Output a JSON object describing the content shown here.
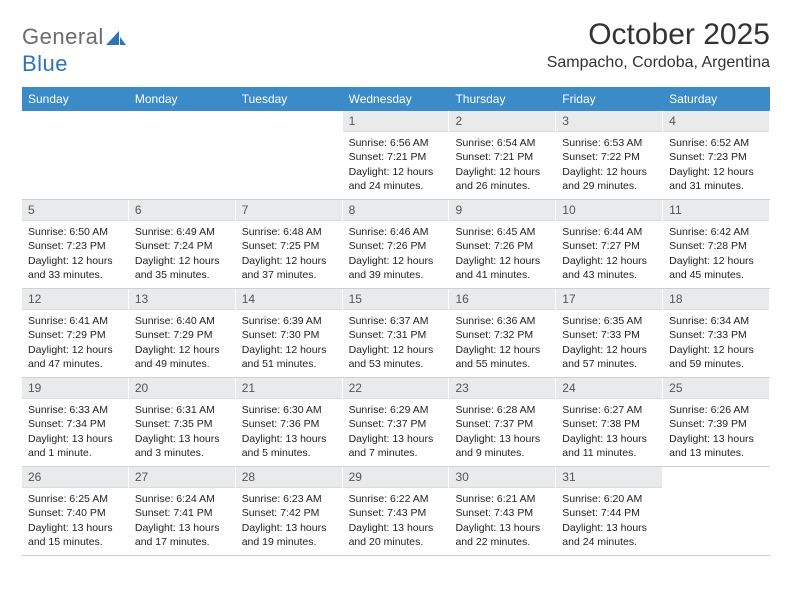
{
  "brand": {
    "name_a": "General",
    "name_b": "Blue"
  },
  "header": {
    "month_title": "October 2025",
    "location": "Sampacho, Cordoba, Argentina"
  },
  "colors": {
    "header_bar": "#3b8bc9",
    "daynum_bg": "#e9eaec",
    "text": "#333333",
    "logo_grey": "#6b6b6b",
    "logo_blue": "#2e75b6"
  },
  "days_of_week": [
    "Sunday",
    "Monday",
    "Tuesday",
    "Wednesday",
    "Thursday",
    "Friday",
    "Saturday"
  ],
  "weeks": [
    [
      null,
      null,
      null,
      {
        "n": "1",
        "sr": "6:56 AM",
        "ss": "7:21 PM",
        "dl": "12 hours and 24 minutes."
      },
      {
        "n": "2",
        "sr": "6:54 AM",
        "ss": "7:21 PM",
        "dl": "12 hours and 26 minutes."
      },
      {
        "n": "3",
        "sr": "6:53 AM",
        "ss": "7:22 PM",
        "dl": "12 hours and 29 minutes."
      },
      {
        "n": "4",
        "sr": "6:52 AM",
        "ss": "7:23 PM",
        "dl": "12 hours and 31 minutes."
      }
    ],
    [
      {
        "n": "5",
        "sr": "6:50 AM",
        "ss": "7:23 PM",
        "dl": "12 hours and 33 minutes."
      },
      {
        "n": "6",
        "sr": "6:49 AM",
        "ss": "7:24 PM",
        "dl": "12 hours and 35 minutes."
      },
      {
        "n": "7",
        "sr": "6:48 AM",
        "ss": "7:25 PM",
        "dl": "12 hours and 37 minutes."
      },
      {
        "n": "8",
        "sr": "6:46 AM",
        "ss": "7:26 PM",
        "dl": "12 hours and 39 minutes."
      },
      {
        "n": "9",
        "sr": "6:45 AM",
        "ss": "7:26 PM",
        "dl": "12 hours and 41 minutes."
      },
      {
        "n": "10",
        "sr": "6:44 AM",
        "ss": "7:27 PM",
        "dl": "12 hours and 43 minutes."
      },
      {
        "n": "11",
        "sr": "6:42 AM",
        "ss": "7:28 PM",
        "dl": "12 hours and 45 minutes."
      }
    ],
    [
      {
        "n": "12",
        "sr": "6:41 AM",
        "ss": "7:29 PM",
        "dl": "12 hours and 47 minutes."
      },
      {
        "n": "13",
        "sr": "6:40 AM",
        "ss": "7:29 PM",
        "dl": "12 hours and 49 minutes."
      },
      {
        "n": "14",
        "sr": "6:39 AM",
        "ss": "7:30 PM",
        "dl": "12 hours and 51 minutes."
      },
      {
        "n": "15",
        "sr": "6:37 AM",
        "ss": "7:31 PM",
        "dl": "12 hours and 53 minutes."
      },
      {
        "n": "16",
        "sr": "6:36 AM",
        "ss": "7:32 PM",
        "dl": "12 hours and 55 minutes."
      },
      {
        "n": "17",
        "sr": "6:35 AM",
        "ss": "7:33 PM",
        "dl": "12 hours and 57 minutes."
      },
      {
        "n": "18",
        "sr": "6:34 AM",
        "ss": "7:33 PM",
        "dl": "12 hours and 59 minutes."
      }
    ],
    [
      {
        "n": "19",
        "sr": "6:33 AM",
        "ss": "7:34 PM",
        "dl": "13 hours and 1 minute."
      },
      {
        "n": "20",
        "sr": "6:31 AM",
        "ss": "7:35 PM",
        "dl": "13 hours and 3 minutes."
      },
      {
        "n": "21",
        "sr": "6:30 AM",
        "ss": "7:36 PM",
        "dl": "13 hours and 5 minutes."
      },
      {
        "n": "22",
        "sr": "6:29 AM",
        "ss": "7:37 PM",
        "dl": "13 hours and 7 minutes."
      },
      {
        "n": "23",
        "sr": "6:28 AM",
        "ss": "7:37 PM",
        "dl": "13 hours and 9 minutes."
      },
      {
        "n": "24",
        "sr": "6:27 AM",
        "ss": "7:38 PM",
        "dl": "13 hours and 11 minutes."
      },
      {
        "n": "25",
        "sr": "6:26 AM",
        "ss": "7:39 PM",
        "dl": "13 hours and 13 minutes."
      }
    ],
    [
      {
        "n": "26",
        "sr": "6:25 AM",
        "ss": "7:40 PM",
        "dl": "13 hours and 15 minutes."
      },
      {
        "n": "27",
        "sr": "6:24 AM",
        "ss": "7:41 PM",
        "dl": "13 hours and 17 minutes."
      },
      {
        "n": "28",
        "sr": "6:23 AM",
        "ss": "7:42 PM",
        "dl": "13 hours and 19 minutes."
      },
      {
        "n": "29",
        "sr": "6:22 AM",
        "ss": "7:43 PM",
        "dl": "13 hours and 20 minutes."
      },
      {
        "n": "30",
        "sr": "6:21 AM",
        "ss": "7:43 PM",
        "dl": "13 hours and 22 minutes."
      },
      {
        "n": "31",
        "sr": "6:20 AM",
        "ss": "7:44 PM",
        "dl": "13 hours and 24 minutes."
      },
      null
    ]
  ],
  "labels": {
    "sunrise": "Sunrise:",
    "sunset": "Sunset:",
    "daylight": "Daylight:"
  }
}
